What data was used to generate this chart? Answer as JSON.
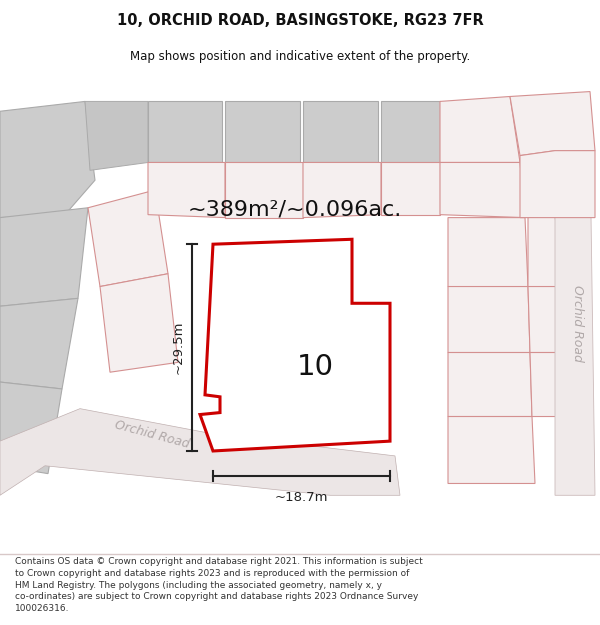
{
  "title_line1": "10, ORCHID ROAD, BASINGSTOKE, RG23 7FR",
  "title_line2": "Map shows position and indicative extent of the property.",
  "area_text": "~389m²/~0.096ac.",
  "width_label": "~18.7m",
  "height_label": "~29.5m",
  "number_label": "10",
  "road_label_diagonal": "Orchid Road",
  "road_label_vertical": "Orchid Road",
  "footer_text": "Contains OS data © Crown copyright and database right 2021. This information is subject to Crown copyright and database rights 2023 and is reproduced with the permission of HM Land Registry. The polygons (including the associated geometry, namely x, y co-ordinates) are subject to Crown copyright and database rights 2023 Ordnance Survey 100026316.",
  "bg_color": "#ffffff",
  "map_bg": "#f0ecec",
  "plot_fill": "#ffffff",
  "plot_stroke": "#cc0000",
  "pink_stroke": "#d49090",
  "pink_fill": "#f5efef",
  "gray_fill": "#cccccc",
  "gray_stroke": "#aaaaaa",
  "dim_color": "#222222",
  "label_color": "#111111",
  "road_text_color": "#b0a8a8"
}
